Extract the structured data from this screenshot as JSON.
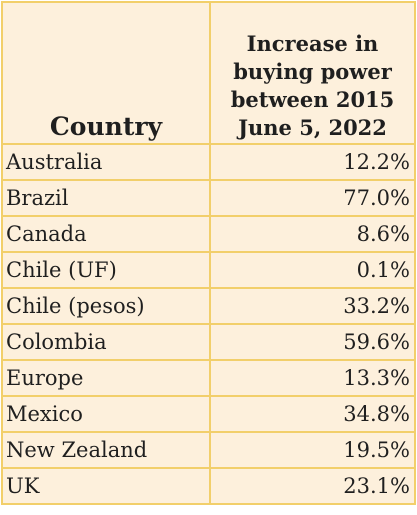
{
  "table": {
    "headers": {
      "country": "Country",
      "metric_lines": [
        "Increase in",
        "buying power",
        "between 2015",
        "June 5, 2022"
      ]
    },
    "rows": [
      {
        "country": "Australia",
        "value": "12.2%"
      },
      {
        "country": "Brazil",
        "value": "77.0%"
      },
      {
        "country": "Canada",
        "value": "8.6%"
      },
      {
        "country": "Chile (UF)",
        "value": "0.1%"
      },
      {
        "country": "Chile (pesos)",
        "value": "33.2%"
      },
      {
        "country": "Colombia",
        "value": "59.6%"
      },
      {
        "country": "Europe",
        "value": "13.3%"
      },
      {
        "country": "Mexico",
        "value": "34.8%"
      },
      {
        "country": "New Zealand",
        "value": "19.5%"
      },
      {
        "country": "UK",
        "value": "23.1%"
      }
    ]
  },
  "colors": {
    "cell_background": "#fdf0dc",
    "border": "#f2cf6a",
    "text": "#1f1f1f"
  }
}
